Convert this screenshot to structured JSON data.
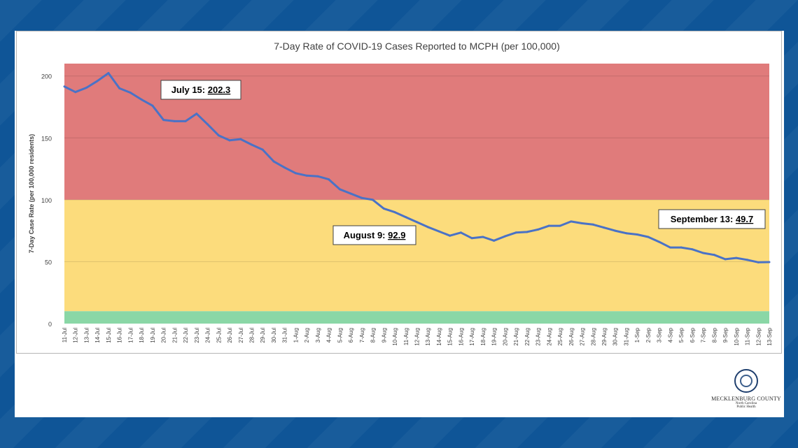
{
  "chart_data": {
    "type": "line",
    "title": "7-Day Rate of COVID-19 Cases Reported to MCPH (per 100,000)",
    "xlabel": "",
    "ylabel": "7-Day Case Rate (per 100,000 residents)",
    "ylim": [
      0,
      210
    ],
    "yticks": [
      0,
      50,
      100,
      150,
      200
    ],
    "grid": true,
    "legend": "none",
    "bands": [
      {
        "from": 100,
        "to": 210,
        "color": "#e07b7b"
      },
      {
        "from": 10,
        "to": 100,
        "color": "#fcdc7c"
      },
      {
        "from": 0,
        "to": 10,
        "color": "#8ad7a6"
      }
    ],
    "line_color": "#4a72c6",
    "categories": [
      "11-Jul",
      "12-Jul",
      "13-Jul",
      "14-Jul",
      "15-Jul",
      "16-Jul",
      "17-Jul",
      "18-Jul",
      "19-Jul",
      "20-Jul",
      "21-Jul",
      "22-Jul",
      "23-Jul",
      "24-Jul",
      "25-Jul",
      "26-Jul",
      "27-Jul",
      "28-Jul",
      "29-Jul",
      "30-Jul",
      "31-Jul",
      "1-Aug",
      "2-Aug",
      "3-Aug",
      "4-Aug",
      "5-Aug",
      "6-Aug",
      "7-Aug",
      "8-Aug",
      "9-Aug",
      "10-Aug",
      "11-Aug",
      "12-Aug",
      "13-Aug",
      "14-Aug",
      "15-Aug",
      "16-Aug",
      "17-Aug",
      "18-Aug",
      "19-Aug",
      "20-Aug",
      "21-Aug",
      "22-Aug",
      "23-Aug",
      "24-Aug",
      "25-Aug",
      "26-Aug",
      "27-Aug",
      "28-Aug",
      "29-Aug",
      "30-Aug",
      "31-Aug",
      "1-Sep",
      "2-Sep",
      "3-Sep",
      "4-Sep",
      "5-Sep",
      "6-Sep",
      "7-Sep",
      "8-Sep",
      "9-Sep",
      "10-Sep",
      "11-Sep",
      "12-Sep",
      "13-Sep"
    ],
    "series": [
      {
        "values": [
          191.5,
          187,
          190.5,
          196,
          202.3,
          190,
          186.5,
          181,
          176,
          164.5,
          163.5,
          163.5,
          169.5,
          161,
          152,
          148,
          149,
          144.5,
          140.5,
          131,
          126,
          121.5,
          119.5,
          119,
          116.5,
          108.5,
          105,
          101.5,
          100,
          92.9,
          90,
          86,
          82,
          78,
          74.5,
          71,
          73.5,
          69,
          70,
          67,
          70.5,
          73.5,
          74,
          76,
          79,
          79,
          82.5,
          81,
          80,
          77.5,
          75,
          73,
          72,
          70,
          66,
          61.5,
          61.5,
          60,
          57,
          55.5,
          52,
          53,
          51.5,
          49.5,
          49.7
        ]
      }
    ],
    "annotations": [
      {
        "label": "July 15: ",
        "value": "202.3",
        "category": "15-Jul"
      },
      {
        "label": "August 9: ",
        "value": "92.9",
        "category": "9-Aug"
      },
      {
        "label": "September 13: ",
        "value": "49.7",
        "category": "13-Sep"
      }
    ]
  },
  "logo": {
    "name": "MECKLENBURG COUNTY",
    "state": "North Carolina",
    "dept": "Public Health"
  }
}
